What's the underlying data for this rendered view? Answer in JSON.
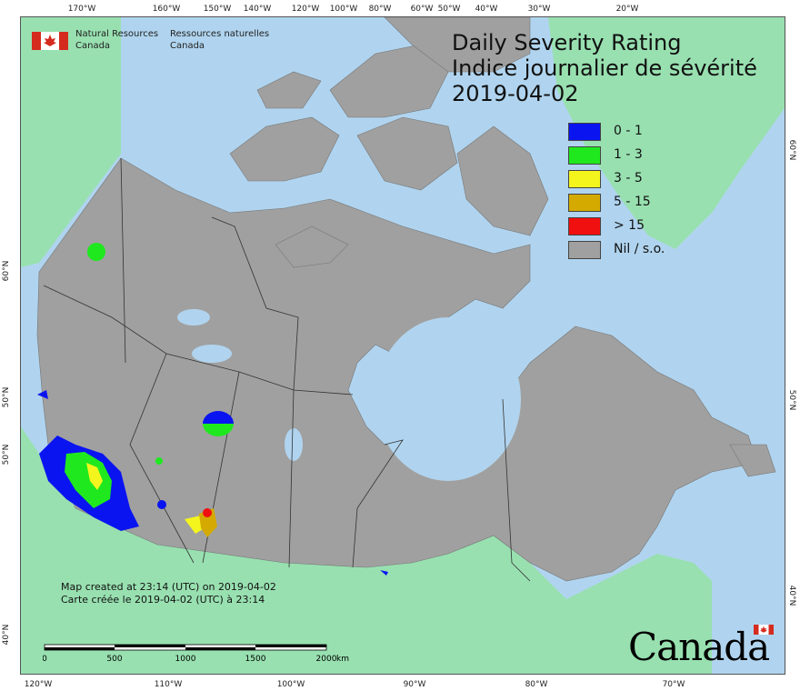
{
  "ticks": {
    "top": [
      "170°W",
      "160°W",
      "150°W",
      "140°W",
      "120°W",
      "100°W",
      "80°W",
      "60°W",
      "50°W",
      "40°W",
      "30°W",
      "20°W"
    ],
    "bottom": [
      "120°W",
      "110°W",
      "100°W",
      "90°W",
      "80°W",
      "70°W"
    ],
    "left": [
      "60°N",
      "50°N",
      "50°N",
      "40°N"
    ],
    "right": [
      "60°N",
      "50°N",
      "40°N"
    ]
  },
  "agency": {
    "en_line1": "Natural Resources",
    "en_line2": "Canada",
    "fr_line1": "Ressources naturelles",
    "fr_line2": "Canada"
  },
  "title": {
    "en": "Daily Severity Rating",
    "fr": "Indice journalier de sévérité",
    "date": "2019-04-02"
  },
  "legend": [
    {
      "label": "0 - 1",
      "color": "#0a14f0"
    },
    {
      "label": "1 - 3",
      "color": "#1fe81f"
    },
    {
      "label": "3 - 5",
      "color": "#f5f51e"
    },
    {
      "label": "5 - 15",
      "color": "#d4aa00"
    },
    {
      "label": "> 15",
      "color": "#f01010"
    },
    {
      "label": "Nil / s.o.",
      "color": "#a0a0a0"
    }
  ],
  "credit": {
    "en": "Map created at 23:14 (UTC) on 2019-04-02",
    "fr": "Carte créée le 2019-04-02 (UTC) à 23:14"
  },
  "scale": {
    "labels": [
      "0",
      "500",
      "1000",
      "1500",
      "2000"
    ],
    "unit": "km"
  },
  "wordmark": "Canada",
  "colors": {
    "water": "#b0d4ef",
    "land_outside": "#98e0b0",
    "canada": "#a0a0a0",
    "borders": "#333333"
  },
  "icons": {
    "agency_flag": "canada-flag-icon",
    "wordmark_flag": "canada-flag-icon"
  }
}
